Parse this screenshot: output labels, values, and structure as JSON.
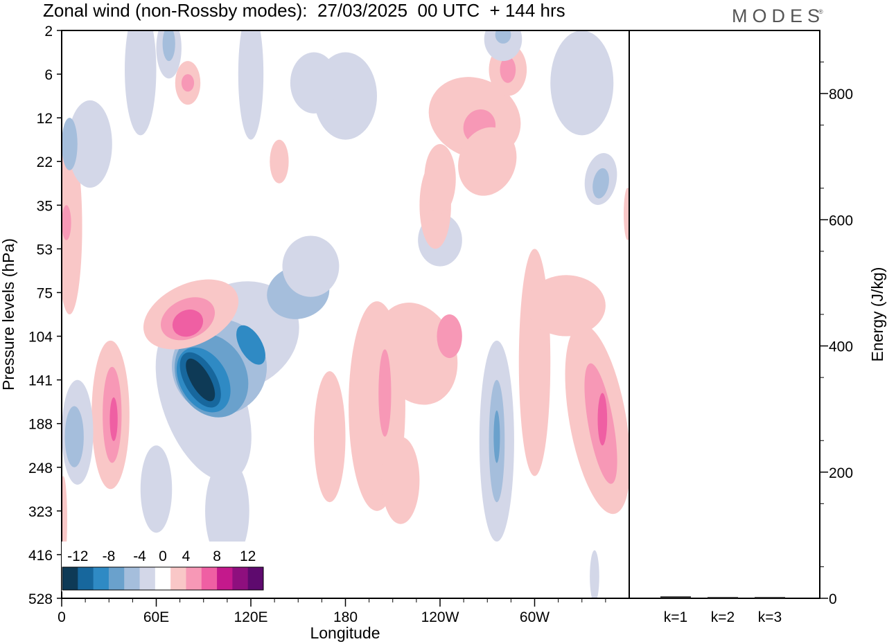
{
  "header": {
    "title": "Zonal wind (non-Rossby modes):  27/03/2025  00 UTC  + 144 hrs",
    "logo": "MODES",
    "logo_mark": "®"
  },
  "chart_data": [
    {
      "type": "heatmap",
      "title": "Zonal wind (non-Rossby modes):  27/03/2025  00 UTC  + 144 hrs",
      "xlabel": "Longitude",
      "ylabel": "Pressure levels (hPa)",
      "x_ticks": [
        "0",
        "60E",
        "120E",
        "180",
        "120W",
        "60W"
      ],
      "x_tick_positions_deg": [
        0,
        60,
        120,
        180,
        240,
        300
      ],
      "xlim_deg": [
        0,
        360
      ],
      "y_ticks": [
        "2",
        "6",
        "12",
        "22",
        "35",
        "53",
        "75",
        "104",
        "141",
        "188",
        "248",
        "323",
        "416",
        "528"
      ],
      "colorbar": {
        "labels": [
          "-12",
          "-8",
          "-4",
          "0",
          "4",
          "8",
          "12"
        ],
        "levels": [
          -14,
          -12,
          -10,
          -8,
          -6,
          -4,
          -2,
          2,
          4,
          6,
          8,
          10,
          12,
          14
        ],
        "colors": [
          "#0e3a56",
          "#17679d",
          "#2f8ac4",
          "#6aa1cc",
          "#a5bedc",
          "#d3d7e8",
          "#ffffff",
          "#f9c7c7",
          "#f798b6",
          "#ef5fa3",
          "#c4198c",
          "#8e0f7e",
          "#5e0a6e"
        ],
        "placement": "bottom-left"
      },
      "features": [
        {
          "lon": 88,
          "level_index": 8.0,
          "value": -14
        },
        {
          "lon": 116,
          "level_index": 7.3,
          "value": -8
        },
        {
          "lon": 146,
          "level_index": 6.2,
          "value": -4
        },
        {
          "lon": 82,
          "level_index": 6.5,
          "value": 6
        },
        {
          "lon": 31,
          "level_index": 8.8,
          "value": 6
        },
        {
          "lon": 10,
          "level_index": 9.2,
          "value": -4
        },
        {
          "lon": 276,
          "level_index": 9.4,
          "value": -4
        },
        {
          "lon": 340,
          "level_index": 8.9,
          "value": 6
        },
        {
          "lon": 200,
          "level_index": 8.8,
          "value": 2
        },
        {
          "lon": 242,
          "level_index": 7.0,
          "value": 4
        },
        {
          "lon": 262,
          "level_index": 2.0,
          "value": 4
        },
        {
          "lon": 283,
          "level_index": 0.9,
          "value": 4
        },
        {
          "lon": 342,
          "level_index": 3.5,
          "value": -4
        },
        {
          "lon": 80,
          "level_index": 1.2,
          "value": 4
        },
        {
          "lon": 68,
          "level_index": 0.4,
          "value": -4
        },
        {
          "lon": 280,
          "level_index": 0.2,
          "value": -4
        }
      ]
    },
    {
      "type": "bar",
      "categories": [
        "k=1",
        "k=2",
        "k=3"
      ],
      "values": [
        3,
        2,
        2
      ],
      "ylabel": "Energy (J/kg)",
      "ylim": [
        0,
        900
      ],
      "y_ticks": [
        0,
        200,
        400,
        600,
        800
      ]
    }
  ]
}
